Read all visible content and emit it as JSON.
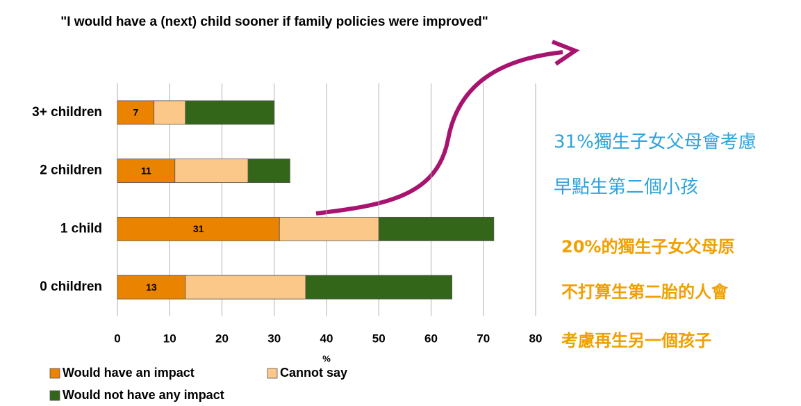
{
  "chart_data": {
    "type": "stacked-bar-horizontal",
    "title": "\"I would have a (next) child sooner if family policies were improved\"",
    "categories": [
      "3+ children",
      "2 children",
      "1 child",
      "0 children"
    ],
    "series": [
      {
        "name": "Would have an impact",
        "color": "#e98300",
        "values": [
          7,
          11,
          31,
          13
        ],
        "labels": true
      },
      {
        "name": "Cannot say",
        "color": "#fcc88a",
        "values": [
          6,
          14,
          19,
          23
        ]
      },
      {
        "name": "Would not have any impact",
        "color": "#336619",
        "values": [
          17,
          8,
          22,
          28
        ]
      }
    ],
    "xlabel": "%",
    "xlim": [
      0,
      80
    ],
    "xticks": [
      0,
      10,
      20,
      30,
      40,
      50,
      60,
      70,
      80
    ],
    "grid": true,
    "annotations": [
      {
        "text": "31%獨生子女父母會考慮",
        "color": "#2ea3dc"
      },
      {
        "text": "早點生第二個小孩",
        "color": "#2ea3dc"
      },
      {
        "text": "20%的獨生子女父母原",
        "color": "#f0a000"
      },
      {
        "text": "不打算生第二胎的人會",
        "color": "#f0a000"
      },
      {
        "text": "考慮再生另一個孩子",
        "color": "#f0a000"
      }
    ]
  }
}
